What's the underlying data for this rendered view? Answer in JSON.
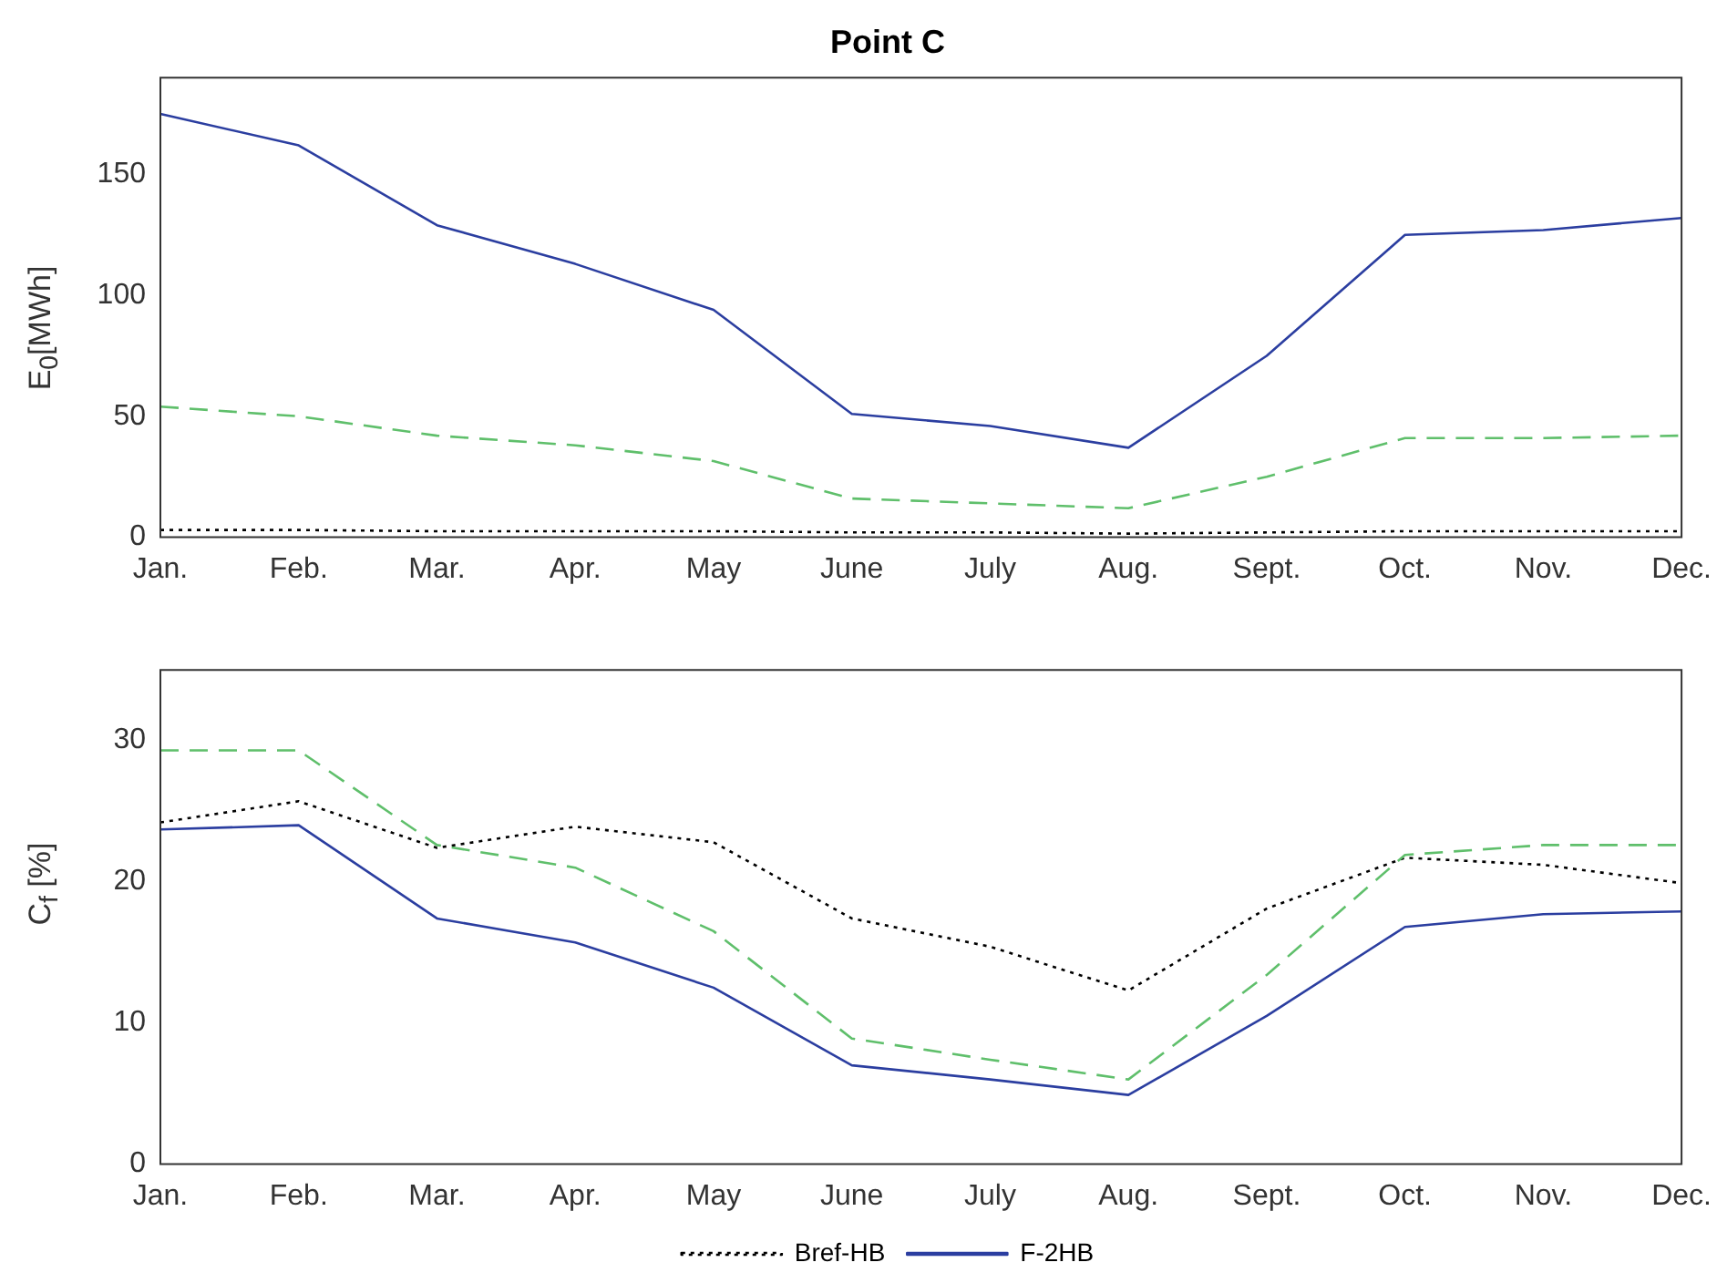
{
  "chart_data": [
    {
      "type": "line",
      "title": "Point C",
      "ylabel": "E$_{0}$[MWh]",
      "categories": [
        "Jan.",
        "Feb.",
        "Mar.",
        "Apr.",
        "May",
        "June",
        "July",
        "Aug.",
        "Sept.",
        "Oct.",
        "Nov.",
        "Dec."
      ],
      "ylim": [
        0,
        190
      ],
      "yticks": [
        0,
        50,
        100,
        150
      ],
      "grid": false,
      "legend": false,
      "series": [
        {
          "color": "#5fbf6b",
          "line_style": "dashed",
          "values": [
            54,
            50,
            42,
            38,
            31.5,
            16,
            14,
            12,
            25,
            41,
            41,
            42
          ]
        },
        {
          "color": "#000000",
          "line_style": "dotted",
          "values": [
            3,
            3,
            2.5,
            2.5,
            2.5,
            2,
            2,
            1.5,
            2,
            2.5,
            2.5,
            2.5
          ]
        },
        {
          "color": "#2b3ea0",
          "line_style": "solid",
          "values": [
            175,
            162,
            129,
            113,
            94,
            51,
            46,
            37,
            75,
            125,
            127,
            132
          ]
        }
      ]
    },
    {
      "type": "line",
      "ylabel": "C$_{f}$ [%]",
      "categories": [
        "Jan.",
        "Feb.",
        "Mar.",
        "Apr.",
        "May",
        "June",
        "July",
        "Aug.",
        "Sept.",
        "Oct.",
        "Nov.",
        "Dec."
      ],
      "ylim": [
        0,
        35
      ],
      "yticks": [
        0,
        10,
        20,
        30
      ],
      "grid": false,
      "legend": "bottom",
      "series": [
        {
          "color": "#5fbf6b",
          "line_style": "dashed",
          "values": [
            29.3,
            29.3,
            22.6,
            21,
            16.5,
            8.9,
            7.4,
            6,
            13.4,
            21.9,
            22.6,
            22.6
          ]
        },
        {
          "name": "Bref-HB",
          "color": "#000000",
          "line_style": "dotted",
          "values": [
            24.2,
            25.7,
            22.4,
            23.9,
            22.8,
            17.4,
            15.4,
            12.3,
            18.1,
            21.7,
            21.2,
            19.9
          ]
        },
        {
          "name": "F-2HB",
          "color": "#2b3ea0",
          "line_style": "solid",
          "values": [
            23.7,
            24,
            17.4,
            15.7,
            12.5,
            7,
            6,
            4.9,
            10.5,
            16.8,
            17.7,
            17.9
          ]
        }
      ]
    }
  ]
}
